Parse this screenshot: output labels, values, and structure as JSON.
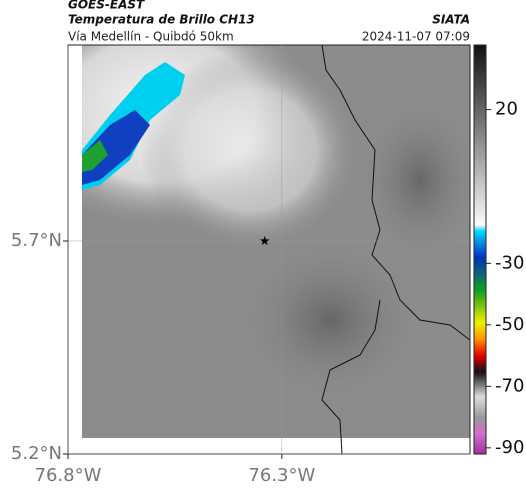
{
  "header": {
    "title": "GOES-EAST",
    "subtitle": "Temperatura de Brillo CH13",
    "region": "Vía Medellín - Quibdó 50km",
    "source": "SIATA",
    "datetime": "2024-11-07 07:09"
  },
  "map": {
    "xlim": [
      -76.8,
      -75.86
    ],
    "ylim": [
      5.2,
      6.16
    ],
    "xticks": [
      {
        "value": -76.8,
        "label": "76.8°W"
      },
      {
        "value": -76.3,
        "label": "76.3°W"
      }
    ],
    "yticks": [
      {
        "value": 5.7,
        "label": "5.7°N"
      },
      {
        "value": 5.2,
        "label": "5.2°N"
      }
    ],
    "marker": {
      "lon": -76.34,
      "lat": 5.7
    },
    "grid": true
  },
  "colorbar": {
    "clim": [
      -92,
      41
    ],
    "ticks": [
      20,
      -30,
      -50,
      -70,
      -90
    ]
  }
}
